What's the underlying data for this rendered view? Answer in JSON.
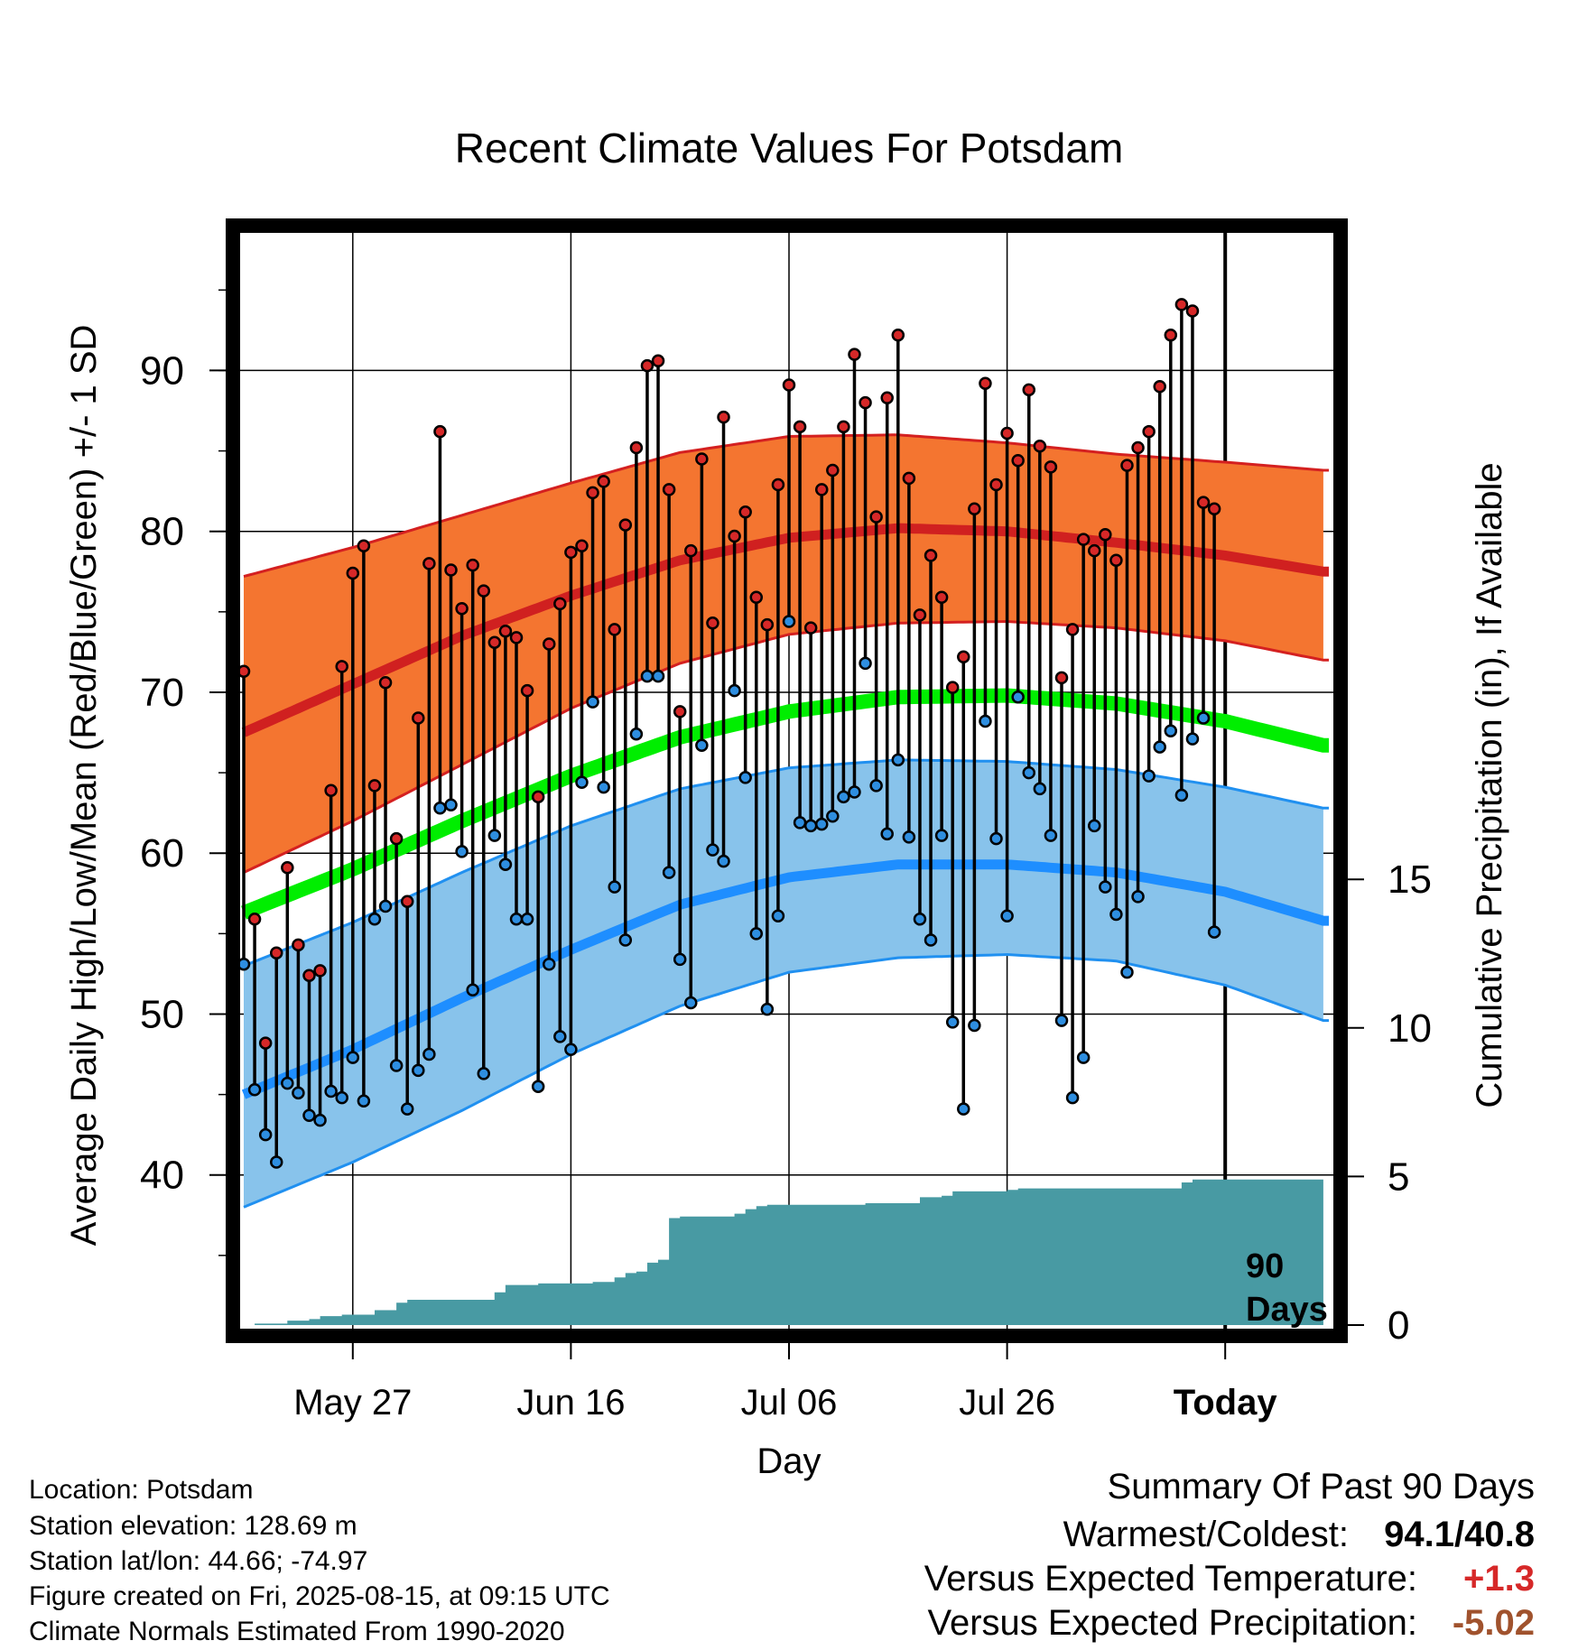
{
  "chart_data": {
    "type": "line",
    "title": "Recent Climate Values For Potsdam",
    "xlabel": "Day",
    "ylabel": "Average Daily High/Low/Mean (Red/Blue/Green) +/- 1 SD",
    "y2label": "Cumulative Precipitation (in), If Available",
    "ylim": [
      30,
      99
    ],
    "y2lim": [
      0,
      37
    ],
    "y_ticks": [
      "40",
      "50",
      "60",
      "70",
      "80",
      "90"
    ],
    "y2_ticks": [
      "0",
      "5",
      "10",
      "15"
    ],
    "x_ticks": [
      "May 27",
      "Jun 16",
      "Jul 06",
      "Jul 26",
      "Today"
    ],
    "period_label": [
      "90",
      "Days"
    ],
    "days": 100,
    "today_index": 90,
    "grid": true,
    "normals": {
      "high_mean": [
        [
          0,
          67.5
        ],
        [
          10,
          70.5
        ],
        [
          20,
          73.5
        ],
        [
          30,
          76.0
        ],
        [
          40,
          78.2
        ],
        [
          50,
          79.6
        ],
        [
          60,
          80.2
        ],
        [
          70,
          80.0
        ],
        [
          80,
          79.3
        ],
        [
          90,
          78.5
        ],
        [
          99,
          77.5
        ]
      ],
      "high_upper": [
        [
          0,
          77.2
        ],
        [
          10,
          79.0
        ],
        [
          20,
          81.0
        ],
        [
          30,
          83.0
        ],
        [
          40,
          84.9
        ],
        [
          50,
          85.9
        ],
        [
          60,
          86.0
        ],
        [
          70,
          85.5
        ],
        [
          80,
          84.8
        ],
        [
          90,
          84.3
        ],
        [
          99,
          83.8
        ]
      ],
      "high_lower": [
        [
          0,
          58.8
        ],
        [
          10,
          62.0
        ],
        [
          20,
          65.5
        ],
        [
          30,
          69.0
        ],
        [
          40,
          71.8
        ],
        [
          50,
          73.6
        ],
        [
          60,
          74.3
        ],
        [
          70,
          74.4
        ],
        [
          80,
          74.0
        ],
        [
          90,
          73.2
        ],
        [
          99,
          72.0
        ]
      ],
      "mean": [
        [
          0,
          56.3
        ],
        [
          10,
          59.0
        ],
        [
          20,
          62.0
        ],
        [
          30,
          64.8
        ],
        [
          40,
          67.2
        ],
        [
          50,
          68.8
        ],
        [
          60,
          69.7
        ],
        [
          70,
          69.8
        ],
        [
          80,
          69.3
        ],
        [
          90,
          68.2
        ],
        [
          99,
          66.7
        ]
      ],
      "low_mean": [
        [
          0,
          45.0
        ],
        [
          10,
          47.8
        ],
        [
          20,
          51.0
        ],
        [
          30,
          54.0
        ],
        [
          40,
          56.8
        ],
        [
          50,
          58.5
        ],
        [
          60,
          59.3
        ],
        [
          70,
          59.3
        ],
        [
          80,
          58.8
        ],
        [
          90,
          57.6
        ],
        [
          99,
          55.8
        ]
      ],
      "low_upper": [
        [
          0,
          53.0
        ],
        [
          10,
          55.7
        ],
        [
          20,
          58.8
        ],
        [
          30,
          61.7
        ],
        [
          40,
          64.0
        ],
        [
          50,
          65.3
        ],
        [
          60,
          65.8
        ],
        [
          70,
          65.7
        ],
        [
          80,
          65.2
        ],
        [
          90,
          64.1
        ],
        [
          99,
          62.8
        ]
      ],
      "low_lower": [
        [
          0,
          38.0
        ],
        [
          10,
          40.8
        ],
        [
          20,
          44.0
        ],
        [
          30,
          47.5
        ],
        [
          40,
          50.5
        ],
        [
          50,
          52.6
        ],
        [
          60,
          53.5
        ],
        [
          70,
          53.7
        ],
        [
          80,
          53.3
        ],
        [
          90,
          51.8
        ],
        [
          99,
          49.6
        ]
      ]
    },
    "observed": {
      "high": [
        71.3,
        55.9,
        48.2,
        53.8,
        59.1,
        54.3,
        52.4,
        52.7,
        63.9,
        71.6,
        77.4,
        79.1,
        64.2,
        70.6,
        60.9,
        57.0,
        68.4,
        78.0,
        86.2,
        77.6,
        75.2,
        77.9,
        76.3,
        73.1,
        73.8,
        73.4,
        70.1,
        63.5,
        73.0,
        75.5,
        78.7,
        79.1,
        82.4,
        83.1,
        73.9,
        80.4,
        85.2,
        90.3,
        90.6,
        82.6,
        68.8,
        78.8,
        84.5,
        74.3,
        87.1,
        79.7,
        81.2,
        75.9,
        74.2,
        82.9,
        89.1,
        86.5,
        74.0,
        82.6,
        83.8,
        86.5,
        91.0,
        88.0,
        80.9,
        88.3,
        92.2,
        83.3,
        74.8,
        78.5,
        75.9,
        70.3,
        72.2,
        81.4,
        89.2,
        82.9,
        86.1,
        84.4,
        88.8,
        85.3,
        84.0,
        70.9,
        73.9,
        79.5,
        78.8,
        79.8,
        78.2,
        84.1,
        85.2,
        86.2,
        89.0,
        92.2,
        94.1,
        93.7,
        81.8,
        81.4
      ],
      "low": [
        53.1,
        45.3,
        42.5,
        40.8,
        45.7,
        45.1,
        43.7,
        43.4,
        45.2,
        44.8,
        47.3,
        44.6,
        55.9,
        56.7,
        46.8,
        44.1,
        46.5,
        47.5,
        62.8,
        63.0,
        60.1,
        51.5,
        46.3,
        61.1,
        59.3,
        55.9,
        55.9,
        45.5,
        53.1,
        48.6,
        47.8,
        64.4,
        69.4,
        64.1,
        57.9,
        54.6,
        67.4,
        71.0,
        71.0,
        58.8,
        53.4,
        50.7,
        66.7,
        60.2,
        59.5,
        70.1,
        64.7,
        55.0,
        50.3,
        56.1,
        74.4,
        61.9,
        61.7,
        61.8,
        62.3,
        63.5,
        63.8,
        71.8,
        64.2,
        61.2,
        65.8,
        61.0,
        55.9,
        54.6,
        61.1,
        49.5,
        44.1,
        49.3,
        68.2,
        60.9,
        56.1,
        69.7,
        65.0,
        64.0,
        61.1,
        49.6,
        44.8,
        47.3,
        61.7,
        57.9,
        56.2,
        52.6,
        57.3,
        64.8,
        66.6,
        67.6,
        63.6,
        67.1,
        68.4,
        55.1
      ]
    },
    "precip_cumulative": [
      [
        0,
        0.0
      ],
      [
        1,
        0.05
      ],
      [
        4,
        0.15
      ],
      [
        6,
        0.2
      ],
      [
        7,
        0.3
      ],
      [
        9,
        0.35
      ],
      [
        11,
        0.35
      ],
      [
        12,
        0.5
      ],
      [
        13,
        0.5
      ],
      [
        14,
        0.75
      ],
      [
        15,
        0.85
      ],
      [
        17,
        0.85
      ],
      [
        22,
        0.85
      ],
      [
        23,
        1.1
      ],
      [
        24,
        1.35
      ],
      [
        27,
        1.4
      ],
      [
        32,
        1.45
      ],
      [
        33,
        1.45
      ],
      [
        34,
        1.6
      ],
      [
        35,
        1.75
      ],
      [
        36,
        1.8
      ],
      [
        37,
        2.1
      ],
      [
        38,
        2.2
      ],
      [
        39,
        3.6
      ],
      [
        40,
        3.65
      ],
      [
        44,
        3.65
      ],
      [
        45,
        3.75
      ],
      [
        46,
        3.9
      ],
      [
        47,
        4.0
      ],
      [
        48,
        4.05
      ],
      [
        56,
        4.05
      ],
      [
        57,
        4.1
      ],
      [
        61,
        4.1
      ],
      [
        62,
        4.3
      ],
      [
        64,
        4.35
      ],
      [
        65,
        4.5
      ],
      [
        70,
        4.55
      ],
      [
        71,
        4.6
      ],
      [
        85,
        4.6
      ],
      [
        86,
        4.8
      ],
      [
        87,
        4.9
      ],
      [
        99,
        4.9
      ]
    ],
    "footer": [
      "Location: Potsdam",
      "Station elevation: 128.69 m",
      "Station lat/lon: 44.66; -74.97",
      "Figure created on Fri, 2025-08-15, at 09:15 UTC",
      "Climate Normals Estimated From 1990-2020"
    ],
    "summary": {
      "title": "Summary Of Past 90 Days",
      "warmest_label": "Warmest/Coldest:",
      "warmest_value": "94.1/40.8",
      "temp_label": "Versus Expected Temperature:",
      "temp_value": "+1.3",
      "precip_label": "Versus Expected Precipitation:",
      "precip_value": "-5.02"
    },
    "colors": {
      "high_band": "#f47530",
      "high_band_edge": "#d42020",
      "high_line": "#d02020",
      "low_band": "#88c3eb",
      "low_band_edge": "#2090f0",
      "low_line": "#1e8eff",
      "mean_line": "#00ee00",
      "precip_fill": "#489aa3",
      "high_point": "#d62828",
      "low_point": "#2e8ee0",
      "temp_anomaly": "#d62828",
      "precip_anomaly": "#a0522d"
    }
  }
}
